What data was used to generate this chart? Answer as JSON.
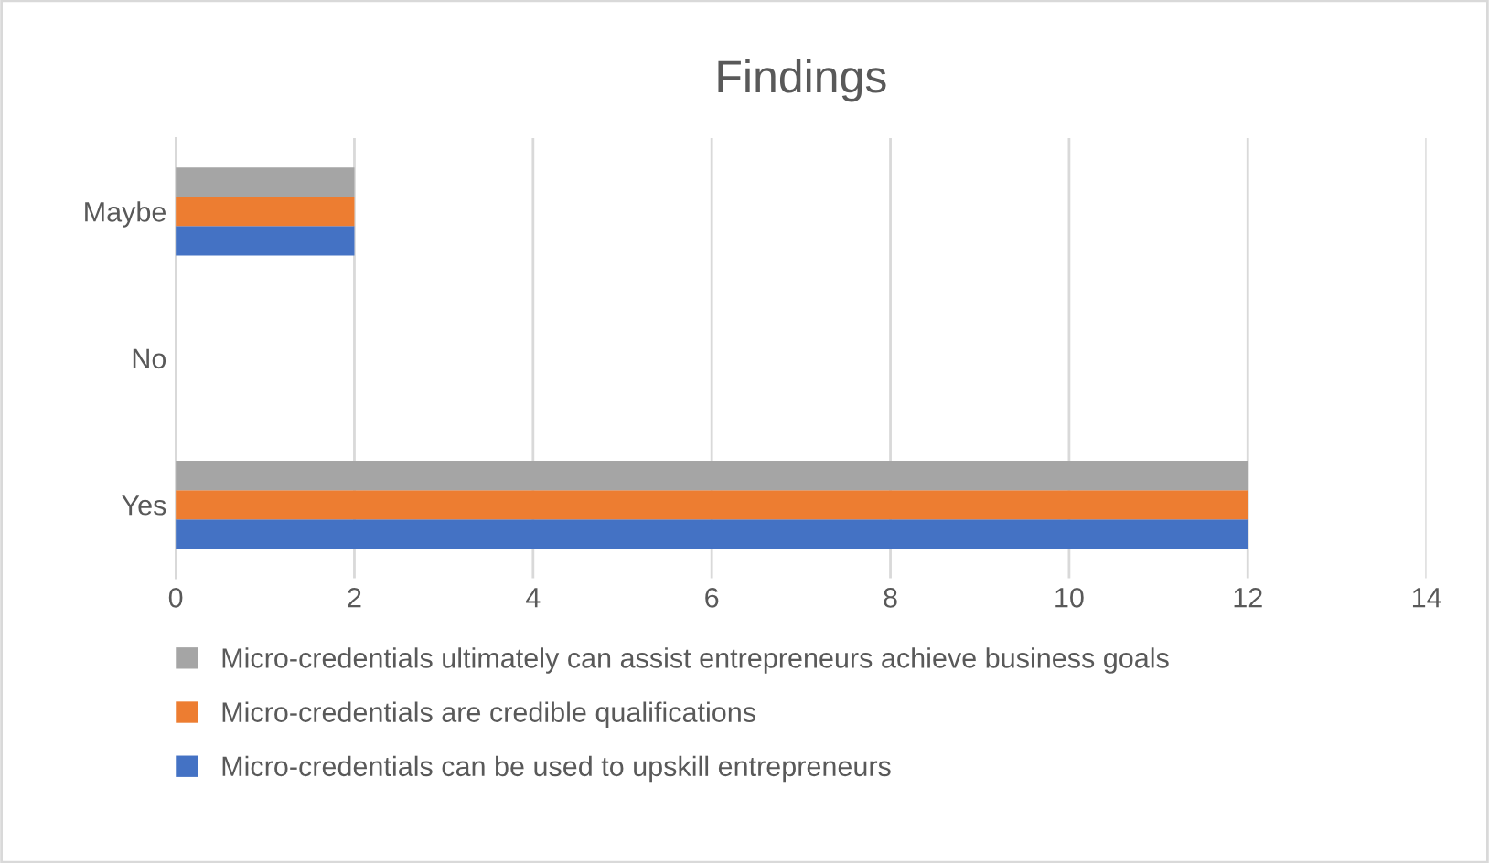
{
  "chart_data": {
    "type": "bar",
    "orientation": "horizontal",
    "title": "Findings",
    "categories": [
      "Maybe",
      "No",
      "Yes"
    ],
    "series": [
      {
        "name": "Micro-credentials can be used to upskill entrepreneurs",
        "color": "#4472c4",
        "values": [
          2,
          0,
          12
        ]
      },
      {
        "name": "Micro-credentials are credible qualifications",
        "color": "#ed7d31",
        "values": [
          2,
          0,
          12
        ]
      },
      {
        "name": "Micro-credentials ultimately can assist entrepreneurs achieve business goals",
        "color": "#a5a5a5",
        "values": [
          2,
          0,
          12
        ]
      }
    ],
    "xlim": [
      0,
      14
    ],
    "xticks": [
      0,
      2,
      4,
      6,
      8,
      10,
      12,
      14
    ],
    "grid": "x",
    "legend": "bottom"
  }
}
